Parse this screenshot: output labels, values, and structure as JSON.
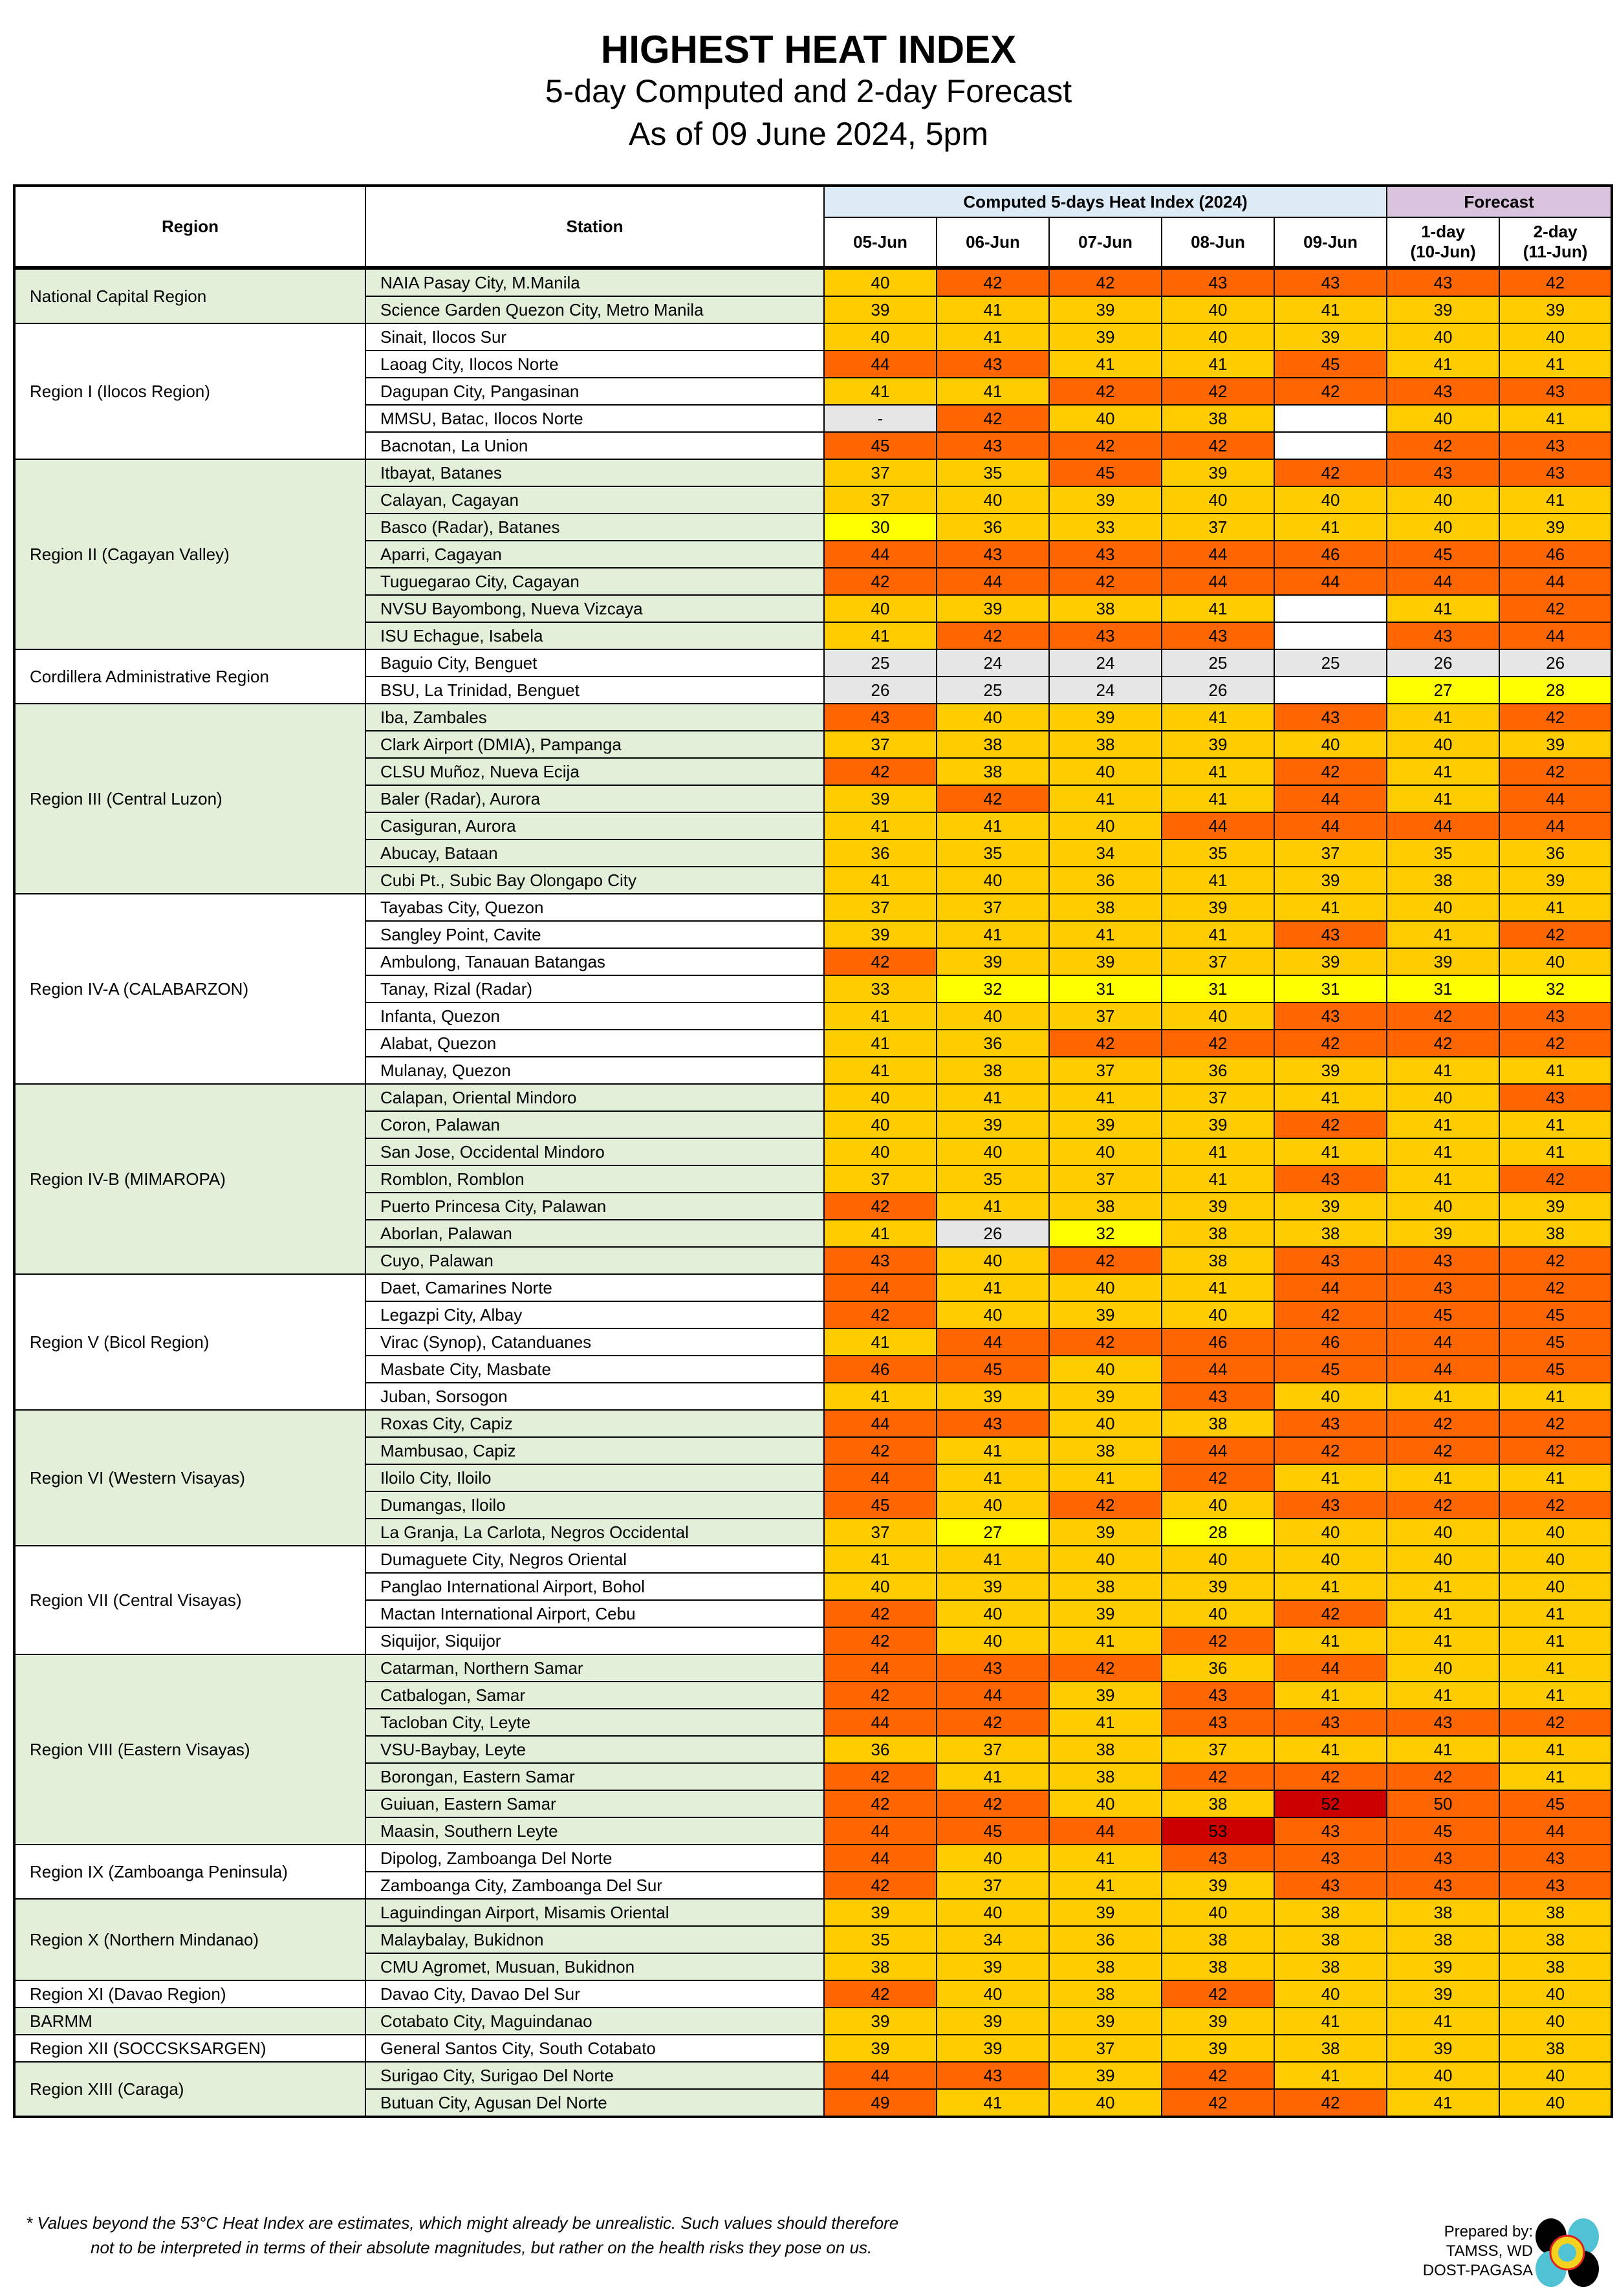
{
  "header": {
    "title": "HIGHEST HEAT INDEX",
    "subtitle": "5-day Computed and 2-day Forecast",
    "as_of": "As of 09 June 2024, 5pm"
  },
  "table": {
    "col_region": "Region",
    "col_station": "Station",
    "group_computed": "Computed 5-days Heat Index (2024)",
    "group_forecast": "Forecast",
    "days": [
      "05-Jun",
      "06-Jun",
      "07-Jun",
      "08-Jun",
      "09-Jun"
    ],
    "forecast_days": [
      [
        "1-day",
        "(10-Jun)"
      ],
      [
        "2-day",
        "(11-Jun)"
      ]
    ],
    "colors": {
      "not_available": "#e6e6e6",
      "below_27": "#e6e6e6",
      "caution": "#ffff00",
      "extreme_caution": "#ffcc00",
      "danger": "#ff6600",
      "extreme_danger": "#cc0000",
      "region_shade": "#e2f0d9",
      "computed_header": "#ddebf7",
      "forecast_header": "#d9c3df"
    },
    "regions": [
      {
        "name": "National Capital Region",
        "stations": [
          {
            "name": "NAIA Pasay City, M.Manila",
            "values": [
              40,
              42,
              42,
              43,
              43,
              43,
              42
            ]
          },
          {
            "name": "Science Garden Quezon City, Metro Manila",
            "values": [
              39,
              41,
              39,
              40,
              41,
              39,
              39
            ]
          }
        ]
      },
      {
        "name": "Region I (Ilocos Region)",
        "stations": [
          {
            "name": "Sinait, Ilocos Sur",
            "values": [
              40,
              41,
              39,
              40,
              39,
              40,
              40
            ]
          },
          {
            "name": "Laoag City, Ilocos Norte",
            "values": [
              44,
              43,
              41,
              41,
              45,
              41,
              41
            ]
          },
          {
            "name": "Dagupan City, Pangasinan",
            "values": [
              41,
              41,
              42,
              42,
              42,
              43,
              43
            ]
          },
          {
            "name": "MMSU, Batac, Ilocos Norte",
            "values": [
              "-",
              42,
              40,
              38,
              null,
              40,
              41
            ]
          },
          {
            "name": "Bacnotan, La Union",
            "values": [
              45,
              43,
              42,
              42,
              null,
              42,
              43
            ]
          }
        ]
      },
      {
        "name": "Region II (Cagayan Valley)",
        "stations": [
          {
            "name": "Itbayat, Batanes",
            "values": [
              37,
              35,
              45,
              39,
              42,
              43,
              43
            ]
          },
          {
            "name": "Calayan, Cagayan",
            "values": [
              37,
              40,
              39,
              40,
              40,
              40,
              41
            ]
          },
          {
            "name": "Basco (Radar), Batanes",
            "values": [
              30,
              36,
              33,
              37,
              41,
              40,
              39
            ]
          },
          {
            "name": "Aparri, Cagayan",
            "values": [
              44,
              43,
              43,
              44,
              46,
              45,
              46
            ]
          },
          {
            "name": "Tuguegarao City, Cagayan",
            "values": [
              42,
              44,
              42,
              44,
              44,
              44,
              44
            ]
          },
          {
            "name": "NVSU Bayombong, Nueva Vizcaya",
            "values": [
              40,
              39,
              38,
              41,
              null,
              41,
              42
            ]
          },
          {
            "name": "ISU Echague, Isabela",
            "values": [
              41,
              42,
              43,
              43,
              null,
              43,
              44
            ]
          }
        ]
      },
      {
        "name": "Cordillera Administrative Region",
        "stations": [
          {
            "name": "Baguio City, Benguet",
            "values": [
              25,
              24,
              24,
              25,
              25,
              26,
              26
            ]
          },
          {
            "name": "BSU, La Trinidad, Benguet",
            "values": [
              26,
              25,
              24,
              26,
              null,
              27,
              28
            ]
          }
        ]
      },
      {
        "name": "Region III (Central Luzon)",
        "stations": [
          {
            "name": "Iba, Zambales",
            "values": [
              43,
              40,
              39,
              41,
              43,
              41,
              42
            ]
          },
          {
            "name": "Clark Airport (DMIA), Pampanga",
            "values": [
              37,
              38,
              38,
              39,
              40,
              40,
              39
            ]
          },
          {
            "name": "CLSU Muñoz, Nueva Ecija",
            "values": [
              42,
              38,
              40,
              41,
              42,
              41,
              42
            ]
          },
          {
            "name": "Baler (Radar), Aurora",
            "values": [
              39,
              42,
              41,
              41,
              44,
              41,
              44
            ]
          },
          {
            "name": "Casiguran, Aurora",
            "values": [
              41,
              41,
              40,
              44,
              44,
              44,
              44
            ]
          },
          {
            "name": "Abucay, Bataan",
            "values": [
              36,
              35,
              34,
              35,
              37,
              35,
              36
            ]
          },
          {
            "name": "Cubi Pt., Subic Bay Olongapo City",
            "values": [
              41,
              40,
              36,
              41,
              39,
              38,
              39
            ]
          }
        ]
      },
      {
        "name": "Region IV-A (CALABARZON)",
        "stations": [
          {
            "name": "Tayabas City, Quezon",
            "values": [
              37,
              37,
              38,
              39,
              41,
              40,
              41
            ]
          },
          {
            "name": "Sangley Point, Cavite",
            "values": [
              39,
              41,
              41,
              41,
              43,
              41,
              42
            ]
          },
          {
            "name": "Ambulong, Tanauan Batangas",
            "values": [
              42,
              39,
              39,
              37,
              39,
              39,
              40
            ]
          },
          {
            "name": "Tanay, Rizal (Radar)",
            "values": [
              33,
              32,
              31,
              31,
              31,
              31,
              32
            ]
          },
          {
            "name": "Infanta, Quezon",
            "values": [
              41,
              40,
              37,
              40,
              43,
              42,
              43
            ]
          },
          {
            "name": "Alabat, Quezon",
            "values": [
              41,
              36,
              42,
              42,
              42,
              42,
              42
            ]
          },
          {
            "name": "Mulanay, Quezon",
            "values": [
              41,
              38,
              37,
              36,
              39,
              41,
              41
            ]
          }
        ]
      },
      {
        "name": "Region IV-B (MIMAROPA)",
        "stations": [
          {
            "name": "Calapan, Oriental Mindoro",
            "values": [
              40,
              41,
              41,
              37,
              41,
              40,
              43
            ]
          },
          {
            "name": "Coron, Palawan",
            "values": [
              40,
              39,
              39,
              39,
              42,
              41,
              41
            ]
          },
          {
            "name": "San Jose, Occidental Mindoro",
            "values": [
              40,
              40,
              40,
              41,
              41,
              41,
              41
            ]
          },
          {
            "name": "Romblon, Romblon",
            "values": [
              37,
              35,
              37,
              41,
              43,
              41,
              42
            ]
          },
          {
            "name": "Puerto Princesa City, Palawan",
            "values": [
              42,
              41,
              38,
              39,
              39,
              40,
              39
            ]
          },
          {
            "name": "Aborlan, Palawan",
            "values": [
              41,
              26,
              32,
              38,
              38,
              39,
              38
            ]
          },
          {
            "name": "Cuyo, Palawan",
            "values": [
              43,
              40,
              42,
              38,
              43,
              43,
              42
            ]
          }
        ]
      },
      {
        "name": "Region V (Bicol Region)",
        "stations": [
          {
            "name": "Daet, Camarines Norte",
            "values": [
              44,
              41,
              40,
              41,
              44,
              43,
              42
            ]
          },
          {
            "name": "Legazpi City, Albay",
            "values": [
              42,
              40,
              39,
              40,
              42,
              45,
              45
            ]
          },
          {
            "name": "Virac (Synop), Catanduanes",
            "values": [
              41,
              44,
              42,
              46,
              46,
              44,
              45
            ]
          },
          {
            "name": "Masbate City, Masbate",
            "values": [
              46,
              45,
              40,
              44,
              45,
              44,
              45
            ]
          },
          {
            "name": "Juban, Sorsogon",
            "values": [
              41,
              39,
              39,
              43,
              40,
              41,
              41
            ]
          }
        ]
      },
      {
        "name": "Region VI (Western Visayas)",
        "stations": [
          {
            "name": "Roxas City, Capiz",
            "values": [
              44,
              43,
              40,
              38,
              43,
              42,
              42
            ]
          },
          {
            "name": "Mambusao, Capiz",
            "values": [
              42,
              41,
              38,
              44,
              42,
              42,
              42
            ]
          },
          {
            "name": "Iloilo City, Iloilo",
            "values": [
              44,
              41,
              41,
              42,
              41,
              41,
              41
            ]
          },
          {
            "name": "Dumangas, Iloilo",
            "values": [
              45,
              40,
              42,
              40,
              43,
              42,
              42
            ]
          },
          {
            "name": "La Granja, La Carlota, Negros Occidental",
            "values": [
              37,
              27,
              39,
              28,
              40,
              40,
              40
            ]
          }
        ]
      },
      {
        "name": "Region VII (Central Visayas)",
        "stations": [
          {
            "name": "Dumaguete City, Negros Oriental",
            "values": [
              41,
              41,
              40,
              40,
              40,
              40,
              40
            ]
          },
          {
            "name": "Panglao International Airport, Bohol",
            "values": [
              40,
              39,
              38,
              39,
              41,
              41,
              40
            ]
          },
          {
            "name": "Mactan International Airport, Cebu",
            "values": [
              42,
              40,
              39,
              40,
              42,
              41,
              41
            ]
          },
          {
            "name": "Siquijor, Siquijor",
            "values": [
              42,
              40,
              41,
              42,
              41,
              41,
              41
            ]
          }
        ]
      },
      {
        "name": "Region VIII (Eastern Visayas)",
        "stations": [
          {
            "name": "Catarman, Northern Samar",
            "values": [
              44,
              43,
              42,
              36,
              44,
              40,
              41
            ]
          },
          {
            "name": "Catbalogan, Samar",
            "values": [
              42,
              44,
              39,
              43,
              41,
              41,
              41
            ]
          },
          {
            "name": "Tacloban City, Leyte",
            "values": [
              44,
              42,
              41,
              43,
              43,
              43,
              42
            ]
          },
          {
            "name": "VSU-Baybay, Leyte",
            "values": [
              36,
              37,
              38,
              37,
              41,
              41,
              41
            ]
          },
          {
            "name": "Borongan, Eastern Samar",
            "values": [
              42,
              41,
              38,
              42,
              42,
              42,
              41
            ]
          },
          {
            "name": "Guiuan, Eastern Samar",
            "values": [
              42,
              42,
              40,
              38,
              52,
              50,
              45
            ]
          },
          {
            "name": "Maasin, Southern Leyte",
            "values": [
              44,
              45,
              44,
              53,
              43,
              45,
              44
            ]
          }
        ]
      },
      {
        "name": "Region IX (Zamboanga Peninsula)",
        "stations": [
          {
            "name": "Dipolog, Zamboanga Del Norte",
            "values": [
              44,
              40,
              41,
              43,
              43,
              43,
              43
            ]
          },
          {
            "name": "Zamboanga City, Zamboanga Del Sur",
            "values": [
              42,
              37,
              41,
              39,
              43,
              43,
              43
            ]
          }
        ]
      },
      {
        "name": "Region X (Northern Mindanao)",
        "stations": [
          {
            "name": "Laguindingan Airport, Misamis Oriental",
            "values": [
              39,
              40,
              39,
              40,
              38,
              38,
              38
            ]
          },
          {
            "name": "Malaybalay, Bukidnon",
            "values": [
              35,
              34,
              36,
              38,
              38,
              38,
              38
            ]
          },
          {
            "name": "CMU Agromet, Musuan, Bukidnon",
            "values": [
              38,
              39,
              38,
              38,
              38,
              39,
              38
            ]
          }
        ]
      },
      {
        "name": "Region XI (Davao Region)",
        "stations": [
          {
            "name": "Davao City, Davao Del Sur",
            "values": [
              42,
              40,
              38,
              42,
              40,
              39,
              40
            ]
          }
        ]
      },
      {
        "name": "BARMM",
        "stations": [
          {
            "name": "Cotabato City, Maguindanao",
            "values": [
              39,
              39,
              39,
              39,
              41,
              41,
              40
            ]
          }
        ]
      },
      {
        "name": "Region XII (SOCCSKSARGEN)",
        "stations": [
          {
            "name": "General Santos City, South Cotabato",
            "values": [
              39,
              39,
              37,
              39,
              38,
              39,
              38
            ]
          }
        ]
      },
      {
        "name": "Region XIII (Caraga)",
        "stations": [
          {
            "name": "Surigao City, Surigao Del Norte",
            "values": [
              44,
              43,
              39,
              42,
              41,
              40,
              40
            ]
          },
          {
            "name": "Butuan City, Agusan Del Norte",
            "values": [
              49,
              41,
              40,
              42,
              42,
              41,
              40
            ]
          }
        ]
      }
    ]
  },
  "footer": {
    "note_line1": "* Values beyond the 53°C Heat Index are estimates, which might already be unrealistic. Such values should therefore",
    "note_line2": "not to be interpreted in terms of their absolute magnitudes, but rather on the health risks they pose on us.",
    "prepared_by": "Prepared by:",
    "unit": "TAMSS, WD",
    "agency": "DOST-PAGASA",
    "logo": "PAGASA"
  }
}
